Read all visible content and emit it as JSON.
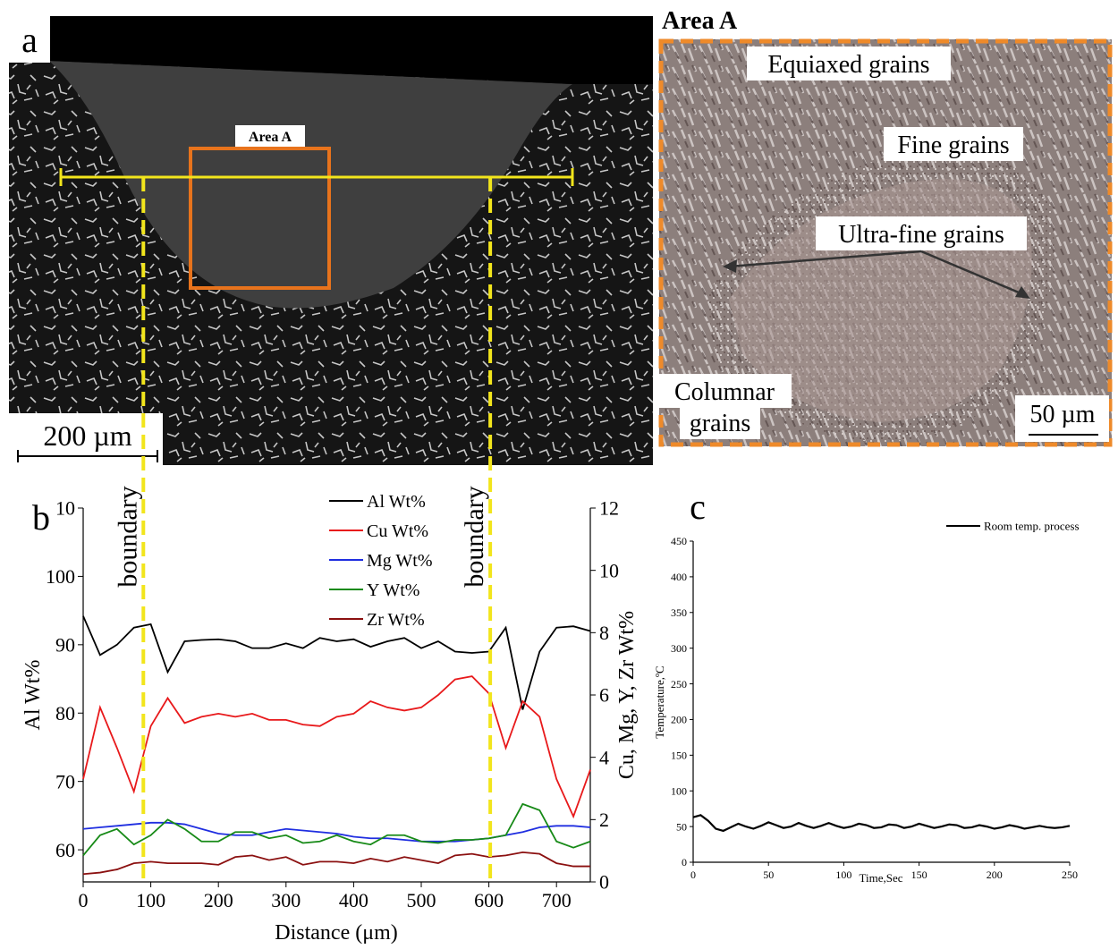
{
  "panel_a": {
    "label": "a",
    "area_label": "Area A",
    "scale_bar": "200 µm"
  },
  "panel_area_a": {
    "title": "Area A",
    "labels": [
      "Equiaxed grains",
      "Fine grains",
      "Ultra-fine grains"
    ],
    "columnar": [
      "Columnar",
      "grains"
    ],
    "scale_bar": "50 µm"
  },
  "chart_data": [
    {
      "type": "line",
      "panel_label": "b",
      "xlabel": "Distance (μm)",
      "ylabel": "Al Wt%",
      "y2label": "Cu, Mg, Y, Zr Wt%",
      "x": [
        0,
        25,
        50,
        75,
        100,
        125,
        150,
        175,
        200,
        225,
        250,
        275,
        300,
        325,
        350,
        375,
        400,
        425,
        450,
        475,
        500,
        525,
        550,
        575,
        600,
        625,
        650,
        675,
        700,
        725,
        750
      ],
      "xlim": [
        0,
        750
      ],
      "xticks": [
        0,
        100,
        200,
        300,
        400,
        500,
        600,
        700
      ],
      "ylim": [
        55.3,
        110
      ],
      "yticks": [
        60,
        70,
        80,
        90,
        100,
        110
      ],
      "y2lim": [
        0,
        12
      ],
      "y2ticks": [
        0,
        2,
        4,
        6,
        8,
        10,
        12
      ],
      "boundaries": [
        89,
        602
      ],
      "boundary_labels": [
        "boundary",
        "boundary"
      ],
      "series": [
        {
          "name": "Al Wt%",
          "color": "#000000",
          "values": [
            94.2,
            88.5,
            90,
            92.5,
            93,
            86,
            90.5,
            90.7,
            90.8,
            90.5,
            89.5,
            89.5,
            90.2,
            89.5,
            91,
            90.5,
            90.8,
            89.7,
            90.5,
            91,
            89.5,
            90.5,
            89,
            88.8,
            89,
            92.5,
            80.5,
            89,
            92.5,
            92.7,
            92
          ]
        },
        {
          "name": "Cu Wt%",
          "color": "#e8191b",
          "axis": "y2",
          "values": [
            3.3,
            5.6,
            4.3,
            2.9,
            5,
            5.9,
            5.1,
            5.3,
            5.4,
            5.3,
            5.4,
            5.2,
            5.2,
            5.05,
            5,
            5.3,
            5.4,
            5.8,
            5.6,
            5.5,
            5.6,
            6,
            6.5,
            6.6,
            6.05,
            4.3,
            5.8,
            5.3,
            3.3,
            2.1,
            3.6
          ]
        },
        {
          "name": "Mg Wt%",
          "color": "#1f2ee0",
          "axis": "y2",
          "values": [
            1.7,
            1.75,
            1.8,
            1.85,
            1.9,
            1.9,
            1.85,
            1.7,
            1.55,
            1.5,
            1.5,
            1.6,
            1.7,
            1.65,
            1.6,
            1.55,
            1.45,
            1.4,
            1.4,
            1.35,
            1.3,
            1.3,
            1.3,
            1.35,
            1.4,
            1.5,
            1.6,
            1.75,
            1.8,
            1.8,
            1.75
          ]
        },
        {
          "name": "Y Wt%",
          "color": "#178a17",
          "axis": "y2",
          "values": [
            0.85,
            1.5,
            1.7,
            1.2,
            1.5,
            2,
            1.7,
            1.3,
            1.3,
            1.6,
            1.6,
            1.4,
            1.5,
            1.25,
            1.3,
            1.5,
            1.3,
            1.2,
            1.5,
            1.5,
            1.3,
            1.25,
            1.35,
            1.35,
            1.4,
            1.5,
            2.5,
            2.3,
            1.3,
            1.1,
            1.3
          ]
        },
        {
          "name": "Zr Wt%",
          "color": "#8b1010",
          "axis": "y2",
          "values": [
            0.25,
            0.3,
            0.4,
            0.6,
            0.65,
            0.6,
            0.6,
            0.6,
            0.55,
            0.8,
            0.85,
            0.7,
            0.8,
            0.55,
            0.65,
            0.65,
            0.6,
            0.75,
            0.65,
            0.8,
            0.7,
            0.6,
            0.85,
            0.9,
            0.8,
            0.85,
            0.95,
            0.9,
            0.6,
            0.5,
            0.5
          ]
        }
      ]
    },
    {
      "type": "line",
      "panel_label": "c",
      "xlabel": "Time,Sec",
      "ylabel": "Temperature,ºC",
      "x": [
        0,
        5,
        10,
        15,
        20,
        25,
        30,
        35,
        40,
        45,
        50,
        55,
        60,
        65,
        70,
        75,
        80,
        85,
        90,
        95,
        100,
        105,
        110,
        115,
        120,
        125,
        130,
        135,
        140,
        145,
        150,
        155,
        160,
        165,
        170,
        175,
        180,
        185,
        190,
        195,
        200,
        205,
        210,
        215,
        220,
        225,
        230,
        235,
        240,
        245,
        250
      ],
      "xlim": [
        0,
        250
      ],
      "xticks": [
        0,
        50,
        100,
        150,
        200,
        250
      ],
      "ylim": [
        0,
        450
      ],
      "yticks": [
        0,
        50,
        100,
        150,
        200,
        250,
        300,
        350,
        400,
        450
      ],
      "series": [
        {
          "name": "Room temp. process",
          "color": "#000000",
          "values": [
            63,
            66,
            58,
            47,
            44,
            49,
            54,
            50,
            47,
            51,
            56,
            52,
            48,
            50,
            55,
            51,
            48,
            51,
            55,
            51,
            48,
            50,
            54,
            52,
            48,
            49,
            53,
            52,
            48,
            50,
            54,
            51,
            48,
            50,
            53,
            52,
            48,
            49,
            52,
            50,
            47,
            49,
            52,
            50,
            47,
            49,
            51,
            49,
            48,
            49,
            51
          ]
        }
      ]
    }
  ]
}
